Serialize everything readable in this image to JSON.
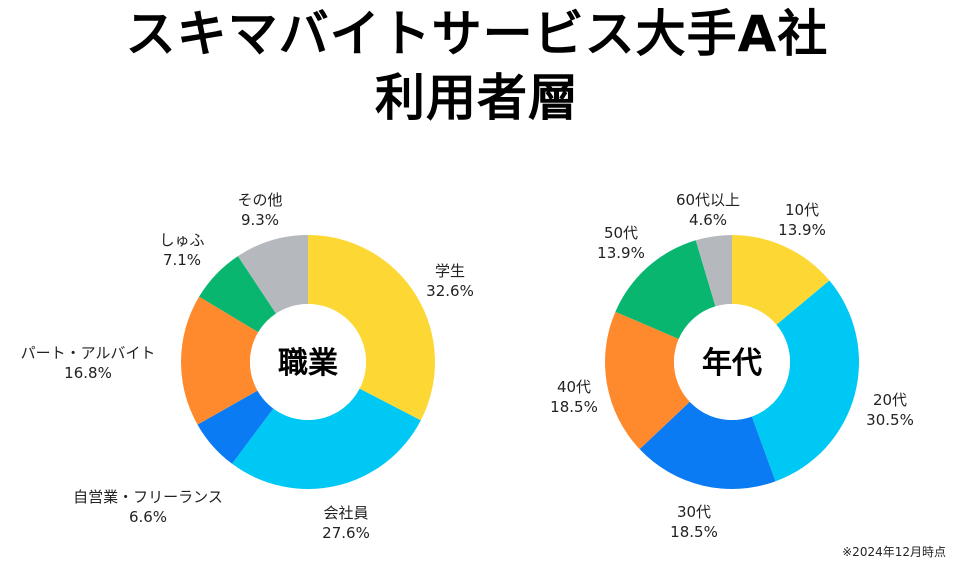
{
  "title": {
    "line1": "スキマバイトサービス大手A社",
    "line2": "利用者層"
  },
  "note": "※2024年12月時点",
  "chart_data": [
    {
      "type": "pie",
      "center_label": "職業",
      "categories": [
        "学生",
        "会社員",
        "自営業・フリーランス",
        "パート・アルバイト",
        "しゅふ",
        "その他"
      ],
      "values": [
        32.6,
        27.6,
        6.6,
        16.8,
        7.1,
        9.3
      ],
      "value_labels": [
        "32.6%",
        "27.6%",
        "6.6%",
        "16.8%",
        "7.1%",
        "9.3%"
      ],
      "colors": [
        "#FDD835",
        "#00C8F5",
        "#0A7BF2",
        "#FF8A2E",
        "#08B670",
        "#B5B9BD"
      ]
    },
    {
      "type": "pie",
      "center_label": "年代",
      "categories": [
        "10代",
        "20代",
        "30代",
        "40代",
        "50代",
        "60代以上"
      ],
      "values": [
        13.9,
        30.5,
        18.5,
        18.5,
        13.9,
        4.6
      ],
      "value_labels": [
        "13.9%",
        "30.5%",
        "18.5%",
        "18.5%",
        "13.9%",
        "4.6%"
      ],
      "colors": [
        "#FDD835",
        "#00C8F5",
        "#0A7BF2",
        "#FF8A2E",
        "#08B670",
        "#B5B9BD"
      ]
    }
  ]
}
